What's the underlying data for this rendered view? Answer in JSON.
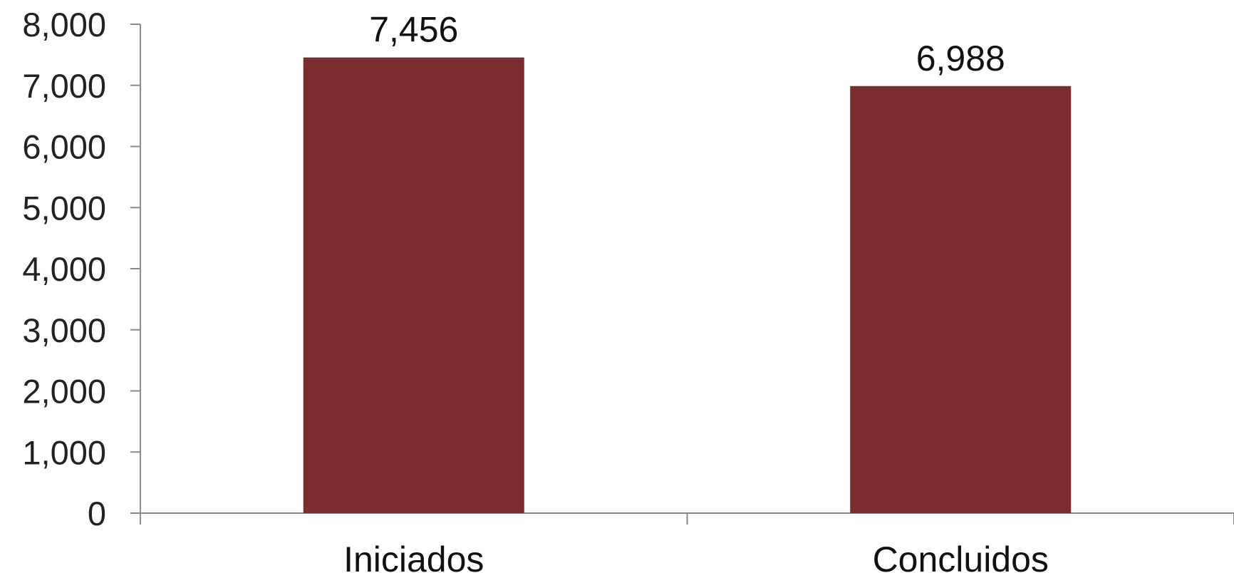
{
  "chart_data": {
    "type": "bar",
    "categories": [
      "Iniciados",
      "Concluidos"
    ],
    "values": [
      7456,
      6988
    ],
    "data_labels": [
      "7,456",
      "6,988"
    ],
    "ylim": [
      0,
      8000
    ],
    "yticks": [
      0,
      1000,
      2000,
      3000,
      4000,
      5000,
      6000,
      7000,
      8000
    ],
    "ytick_labels": [
      "0",
      "1,000",
      "2,000",
      "3,000",
      "4,000",
      "5,000",
      "6,000",
      "7,000",
      "8,000"
    ],
    "title": "",
    "xlabel": "",
    "ylabel": "",
    "grid": false,
    "legend": "none",
    "bar_color": "#7a2c2f"
  }
}
